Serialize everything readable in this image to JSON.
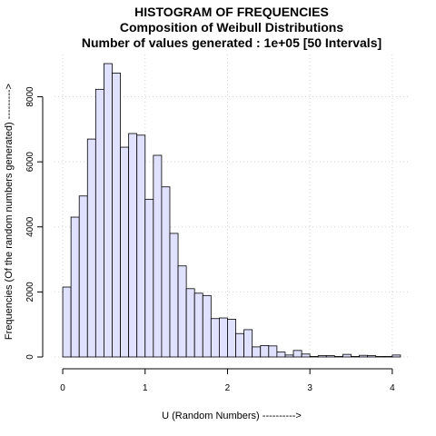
{
  "chart_data": {
    "type": "bar",
    "title_lines": [
      "HISTOGRAM OF FREQUENCIES",
      "Composition of Weibull Distributions",
      "Number of values generated :  1e+05 [50 Intervals]"
    ],
    "xlabel": "U (Random Numbers) ---------->",
    "ylabel": "Frequencies (Of the random numbers generated) --------->",
    "xlim": [
      -0.1,
      4.2
    ],
    "ylim": [
      0,
      9300
    ],
    "xticks": [
      0,
      1,
      2,
      3,
      4
    ],
    "xtick_labels": [
      "0",
      "1",
      "2",
      "3",
      "4"
    ],
    "yticks": [
      0,
      2000,
      4000,
      6000,
      8000
    ],
    "ytick_labels": [
      "0",
      "2000",
      "4000",
      "6000",
      "8000"
    ],
    "grid": true,
    "bar_fill": "#e0e0ff",
    "bar_stroke": "#000000",
    "grid_color": "#d3d3d3",
    "bin_width": 0.1,
    "bin_starts": [
      0,
      0.1,
      0.2,
      0.3,
      0.4,
      0.5,
      0.6,
      0.7,
      0.8,
      0.9,
      1.0,
      1.1,
      1.2,
      1.3,
      1.4,
      1.5,
      1.6,
      1.7,
      1.8,
      1.9,
      2.0,
      2.1,
      2.2,
      2.3,
      2.4,
      2.5,
      2.6,
      2.7,
      2.8,
      2.9,
      3.0,
      3.1,
      3.2,
      3.3,
      3.4,
      3.5,
      3.6,
      3.7,
      3.8,
      3.9,
      4.0
    ],
    "values": [
      2150,
      4300,
      4950,
      6700,
      8230,
      9020,
      8730,
      6450,
      6870,
      6820,
      4850,
      6200,
      5230,
      3800,
      2800,
      2100,
      1960,
      1890,
      1180,
      1200,
      1160,
      720,
      840,
      310,
      350,
      340,
      150,
      60,
      200,
      90,
      15,
      40,
      40,
      15,
      80,
      15,
      50,
      40,
      15,
      15,
      60
    ]
  }
}
